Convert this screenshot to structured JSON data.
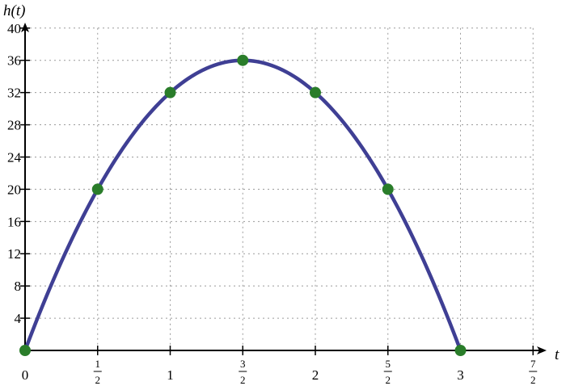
{
  "chart_data": {
    "type": "line",
    "title": "",
    "xlabel": "t",
    "ylabel": "h(t)",
    "xlim": [
      0,
      3.5
    ],
    "ylim": [
      0,
      40
    ],
    "grid": true,
    "x_ticks": [
      {
        "value": 0,
        "label": "0"
      },
      {
        "value": 0.5,
        "num": "1",
        "den": "2"
      },
      {
        "value": 1,
        "label": "1"
      },
      {
        "value": 1.5,
        "num": "3",
        "den": "2"
      },
      {
        "value": 2,
        "label": "2"
      },
      {
        "value": 2.5,
        "num": "5",
        "den": "2"
      },
      {
        "value": 3,
        "label": "3"
      },
      {
        "value": 3.5,
        "num": "7",
        "den": "2"
      }
    ],
    "y_ticks": [
      4,
      8,
      12,
      16,
      20,
      24,
      28,
      32,
      36,
      40
    ],
    "curve": {
      "function": "h(t) = -16t^2 + 48t",
      "domain": [
        0,
        3
      ]
    },
    "points": [
      {
        "x": 0,
        "y": 0
      },
      {
        "x": 0.5,
        "y": 20
      },
      {
        "x": 1,
        "y": 32
      },
      {
        "x": 1.5,
        "y": 36
      },
      {
        "x": 2,
        "y": 32
      },
      {
        "x": 2.5,
        "y": 20
      },
      {
        "x": 3,
        "y": 0
      }
    ],
    "colors": {
      "curve": "#3f3f94",
      "points": "#2a7d2a",
      "grid": "#9a9a9a",
      "axis": "#000000"
    }
  }
}
